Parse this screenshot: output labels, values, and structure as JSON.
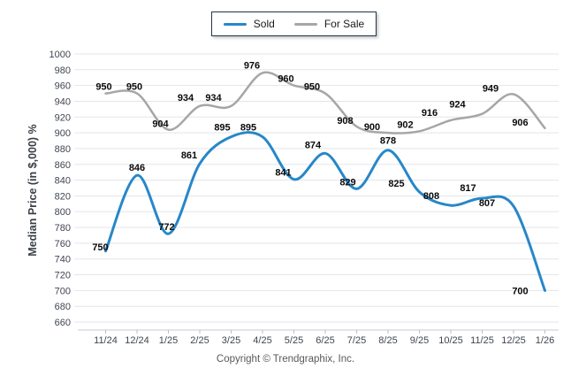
{
  "legend": {
    "items": [
      {
        "label": "Sold",
        "color": "#2787C8"
      },
      {
        "label": "For Sale",
        "color": "#A6A6A6"
      }
    ]
  },
  "footer": {
    "copyright": "Copyright © Trendgraphix, Inc."
  },
  "chart_data": {
    "type": "line",
    "title": "",
    "categories": [
      "11/24",
      "12/24",
      "1/25",
      "2/25",
      "3/25",
      "4/25",
      "5/25",
      "6/25",
      "7/25",
      "8/25",
      "9/25",
      "10/25",
      "11/25",
      "12/25",
      "1/26"
    ],
    "series": [
      {
        "name": "Sold",
        "color": "#2787C8",
        "values": [
          750,
          846,
          772,
          861,
          895,
          895,
          841,
          874,
          829,
          878,
          825,
          808,
          817,
          807,
          700
        ]
      },
      {
        "name": "For Sale",
        "color": "#A6A6A6",
        "values": [
          950,
          950,
          904,
          934,
          934,
          976,
          960,
          950,
          908,
          900,
          902,
          916,
          924,
          949,
          906
        ]
      }
    ],
    "xlabel": "",
    "ylabel": "Median Price (in $,000) %",
    "ylim": [
      660,
      1000
    ],
    "ytick_step": 20,
    "yticks": [
      1000,
      980,
      960,
      940,
      920,
      900,
      880,
      860,
      840,
      820,
      800,
      780,
      760,
      740,
      720,
      700,
      680,
      660
    ],
    "grid": true,
    "smooth": true,
    "data_labels": true,
    "legend_position": "top"
  }
}
